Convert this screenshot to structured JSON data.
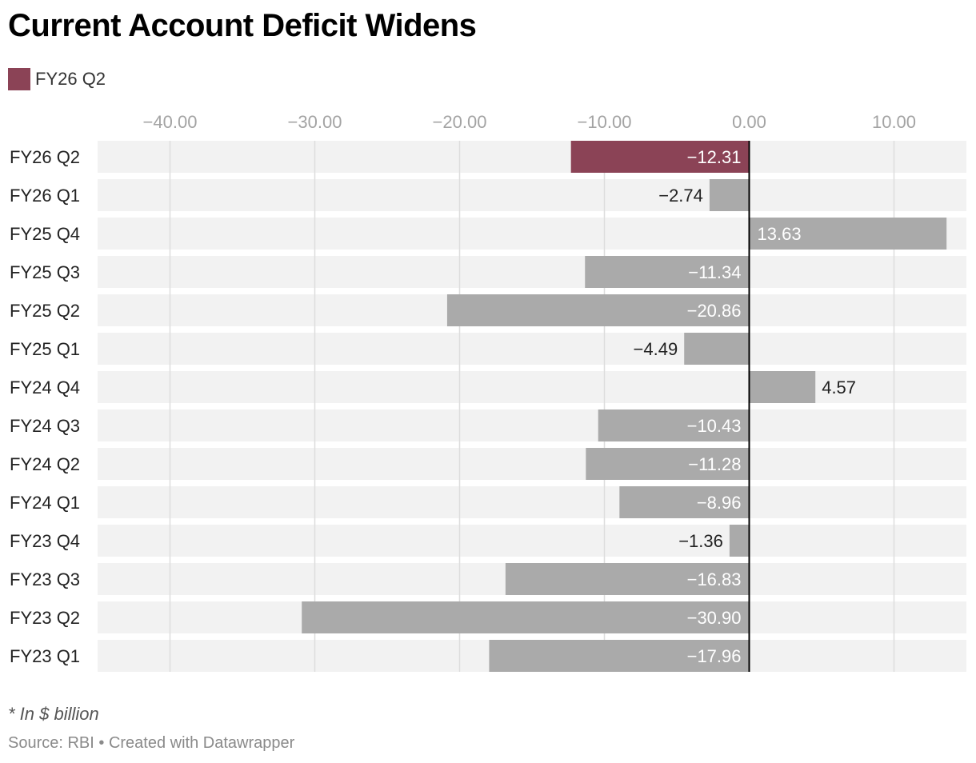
{
  "title": "Current Account Deficit Widens",
  "legend": {
    "label": "FY26 Q2",
    "color": "#8b4356"
  },
  "colors": {
    "highlight": "#8b4356",
    "bar": "#aaaaaa",
    "band": "#f2f2f2",
    "grid": "#dddddd",
    "zero": "#000000"
  },
  "chart_data": {
    "type": "bar",
    "orientation": "horizontal",
    "title": "Current Account Deficit Widens",
    "categories": [
      "FY26 Q2",
      "FY26 Q1",
      "FY25 Q4",
      "FY25 Q3",
      "FY25 Q2",
      "FY25 Q1",
      "FY24 Q4",
      "FY24 Q3",
      "FY24 Q2",
      "FY24 Q1",
      "FY23 Q4",
      "FY23 Q3",
      "FY23 Q2",
      "FY23 Q1"
    ],
    "values": [
      -12.31,
      -2.74,
      13.63,
      -11.34,
      -20.86,
      -4.49,
      4.57,
      -10.43,
      -11.28,
      -8.96,
      -1.36,
      -16.83,
      -30.9,
      -17.96
    ],
    "value_labels": [
      "−12.31",
      "−2.74",
      "13.63",
      "−11.34",
      "−20.86",
      "−4.49",
      "4.57",
      "−10.43",
      "−11.28",
      "−8.96",
      "−1.36",
      "−16.83",
      "−30.90",
      "−17.96"
    ],
    "highlight": "FY26 Q2",
    "xlim": [
      -45,
      15
    ],
    "ticks": [
      -40,
      -30,
      -20,
      -10,
      0,
      10
    ],
    "tick_labels": [
      "−40.00",
      "−30.00",
      "−20.00",
      "−10.00",
      "0.00",
      "10.00"
    ],
    "xlabel": "",
    "ylabel": "",
    "grid": true,
    "legend_position": "top-left"
  },
  "note": "* In $ billion",
  "source": "Source: RBI • Created with Datawrapper"
}
